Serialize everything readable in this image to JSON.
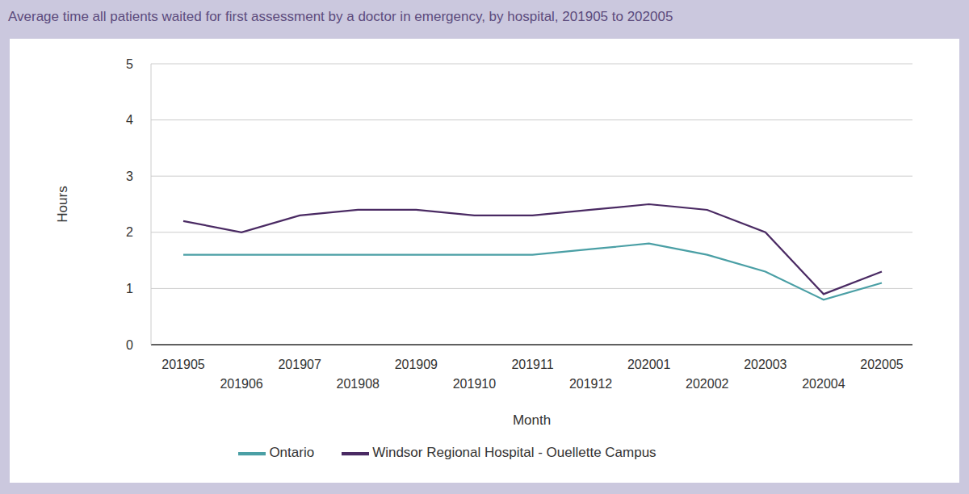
{
  "chart_data": {
    "type": "line",
    "title": "Average time all patients waited for first assessment by a doctor in emergency, by hospital, 201905 to 202005",
    "x_label": "Month",
    "y_label": "Hours",
    "categories": [
      "201905",
      "201906",
      "201907",
      "201908",
      "201909",
      "201910",
      "201911",
      "201912",
      "202001",
      "202002",
      "202003",
      "202004",
      "202005"
    ],
    "series": [
      {
        "name": "Ontario",
        "color": "#4a9fa5",
        "values": [
          1.6,
          1.6,
          1.6,
          1.6,
          1.6,
          1.6,
          1.6,
          1.7,
          1.8,
          1.6,
          1.3,
          0.8,
          1.1
        ]
      },
      {
        "name": "Windsor Regional Hospital - Ouellette Campus",
        "color": "#4a2a63",
        "values": [
          2.2,
          2.0,
          2.3,
          2.4,
          2.4,
          2.3,
          2.3,
          2.4,
          2.5,
          2.4,
          2.0,
          0.9,
          1.3
        ]
      }
    ],
    "ylim": [
      0,
      5
    ],
    "yticks": [
      0,
      1,
      2,
      3,
      4,
      5
    ],
    "grid": true,
    "legend": "bottom"
  }
}
